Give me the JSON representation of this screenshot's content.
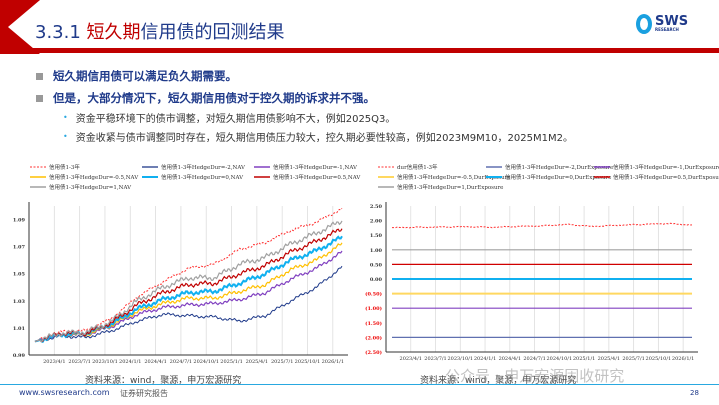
{
  "header": {
    "title_prefix": "3.3.1 ",
    "title_highlight": "短久期",
    "title_rest": "信用债的回测结果",
    "logo": "SWS",
    "logo_sub": "RESEARCH"
  },
  "bullets": [
    {
      "text": "短久期信用债可以满足负久期需要。",
      "sub": []
    },
    {
      "text": "但是，大部分情况下，短久期信用债对于控久期的诉求并不强。",
      "sub": [
        "资金平稳环境下的债市调整，对短久期信用债影响不大，例如2025Q3。",
        "资金收紧与债市调整同时存在，短久期信用债压力较大，控久期必要性较高，例如2023M9M10，2025M1M2。"
      ]
    }
  ],
  "chart_data": [
    {
      "type": "line",
      "title": "",
      "xlabel": "",
      "ylabel": "",
      "ylim": [
        0.99,
        1.1
      ],
      "yticks": [
        "0.99",
        "1.01",
        "1.03",
        "1.05",
        "1.07",
        "1.09"
      ],
      "xticks": [
        "2023/4/1",
        "2023/7/1",
        "2023/10/1",
        "2024/1/1",
        "2024/4/1",
        "2024/7/1",
        "2024/10/1",
        "2025/1/1",
        "2025/4/1",
        "2025/7/1",
        "2025/10/1",
        "2026/1/1"
      ],
      "x": [
        "2023/4",
        "2023/7",
        "2023/10",
        "2024/1",
        "2024/4",
        "2024/7",
        "2024/10",
        "2025/1",
        "2025/4",
        "2025/7",
        "2025/10",
        "2026/1",
        "2026/3"
      ],
      "legend_position": "top",
      "series": [
        {
          "name": "信用债1-3年",
          "color": "#ff3030",
          "dash": true,
          "width": 1,
          "values": [
            1.0,
            1.007,
            1.008,
            1.017,
            1.033,
            1.044,
            1.054,
            1.057,
            1.068,
            1.073,
            1.082,
            1.088,
            1.098
          ]
        },
        {
          "name": "信用债1-3年HedgeDur=-2,NAV",
          "color": "#1f3a8a",
          "width": 1,
          "values": [
            1.0,
            1.004,
            1.003,
            1.008,
            1.015,
            1.02,
            1.019,
            1.018,
            1.015,
            1.019,
            1.03,
            1.04,
            1.055
          ]
        },
        {
          "name": "信用债1-3年HedgeDur=-1,NAV",
          "color": "#8040c0",
          "width": 1.2,
          "values": [
            1.0,
            1.005,
            1.005,
            1.011,
            1.02,
            1.025,
            1.027,
            1.028,
            1.031,
            1.036,
            1.046,
            1.054,
            1.066
          ]
        },
        {
          "name": "信用债1-3年HedgeDur=-0.5,NAV",
          "color": "#ffc000",
          "width": 1.2,
          "values": [
            1.0,
            1.005,
            1.005,
            1.012,
            1.022,
            1.028,
            1.032,
            1.032,
            1.037,
            1.042,
            1.053,
            1.06,
            1.072
          ]
        },
        {
          "name": "信用债1-3年HedgeDur=0,NAV",
          "color": "#10b0f0",
          "width": 2,
          "values": [
            1.0,
            1.005,
            1.006,
            1.013,
            1.024,
            1.031,
            1.036,
            1.037,
            1.043,
            1.05,
            1.06,
            1.067,
            1.077
          ]
        },
        {
          "name": "信用债1-3年HedgeDur=0.5,NAV",
          "color": "#c00000",
          "width": 1.2,
          "values": [
            1.0,
            1.006,
            1.006,
            1.014,
            1.027,
            1.036,
            1.042,
            1.043,
            1.05,
            1.056,
            1.066,
            1.074,
            1.083
          ]
        },
        {
          "name": "信用债1-3年HedgeDur=1,NAV",
          "color": "#a0a0a0",
          "width": 1.2,
          "values": [
            1.0,
            1.006,
            1.007,
            1.015,
            1.03,
            1.04,
            1.047,
            1.047,
            1.057,
            1.062,
            1.072,
            1.08,
            1.089
          ]
        }
      ]
    },
    {
      "type": "line",
      "title": "",
      "xlabel": "",
      "ylabel": "",
      "ylim": [
        -2.5,
        2.5
      ],
      "yticks": [
        "2.50",
        "2.00",
        "1.50",
        "1.00",
        "0.50",
        "0.00",
        "(0.50)",
        "(1.00)",
        "(1.50)",
        "(2.00)",
        "(2.50)"
      ],
      "xticks": [
        "2023/4/1",
        "2023/7/1",
        "2023/10/1",
        "2024/1/1",
        "2024/4/1",
        "2024/7/1",
        "2024/10/1",
        "2025/1/1",
        "2025/4/1",
        "2025/7/1",
        "2025/10/1",
        "2026/1/1"
      ],
      "x": [
        "2023/4",
        "2023/7",
        "2023/10",
        "2024/1",
        "2024/4",
        "2024/7",
        "2024/10",
        "2025/1",
        "2025/4",
        "2025/7",
        "2025/10",
        "2026/1",
        "2026/3"
      ],
      "legend_position": "top",
      "series": [
        {
          "name": "dur信用债1-3年",
          "color": "#ff3030",
          "dash": true,
          "width": 1,
          "values": [
            1.76,
            1.77,
            1.78,
            1.79,
            1.77,
            1.8,
            1.82,
            1.87,
            1.8,
            1.84,
            1.87,
            1.9,
            1.85
          ]
        },
        {
          "name": "信用债1-3年HedgeDur=-2,DurExposure",
          "color": "#6070b0",
          "width": 1.2,
          "values": [
            -2,
            -2,
            -2,
            -2,
            -2,
            -2,
            -2,
            -2,
            -2,
            -2,
            -2,
            -2,
            -2
          ]
        },
        {
          "name": "信用债1-3年HedgeDur=-1,DurExposure",
          "color": "#8040c0",
          "width": 1.2,
          "values": [
            -1,
            -1,
            -1,
            -1,
            -1,
            -1,
            -1,
            -1,
            -1,
            -1,
            -1,
            -1,
            -1
          ]
        },
        {
          "name": "信用债1-3年HedgeDur=-0.5,DurExposure",
          "color": "#ffd860",
          "width": 2,
          "values": [
            -0.5,
            -0.5,
            -0.5,
            -0.5,
            -0.5,
            -0.5,
            -0.5,
            -0.5,
            -0.5,
            -0.5,
            -0.5,
            -0.5,
            -0.5
          ]
        },
        {
          "name": "信用债1-3年HedgeDur=0,DurExposure",
          "color": "#10b0f0",
          "width": 2,
          "values": [
            0,
            0,
            0,
            0,
            0,
            0,
            0,
            0,
            0,
            0,
            0,
            0,
            0
          ]
        },
        {
          "name": "信用债1-3年HedgeDur=0.5,DurExposure",
          "color": "#d00000",
          "width": 1.2,
          "values": [
            0.5,
            0.5,
            0.5,
            0.5,
            0.5,
            0.5,
            0.5,
            0.5,
            0.5,
            0.5,
            0.5,
            0.5,
            0.5
          ]
        },
        {
          "name": "信用债1-3年HedgeDur=1,DurExposure",
          "color": "#a0a0a0",
          "width": 1.2,
          "values": [
            1,
            1,
            1,
            1,
            1,
            1,
            1,
            1,
            1,
            1,
            1,
            1,
            1
          ]
        }
      ]
    }
  ],
  "sources": [
    "资料来源：wind，聚源，申万宏源研究",
    "资料来源：wind，聚源，申万宏源研究"
  ],
  "watermark": "公众号 · 申万宏源固收研究",
  "footer": {
    "url": "www.swsresearch.com",
    "report": "证券研究报告",
    "page": "28"
  }
}
